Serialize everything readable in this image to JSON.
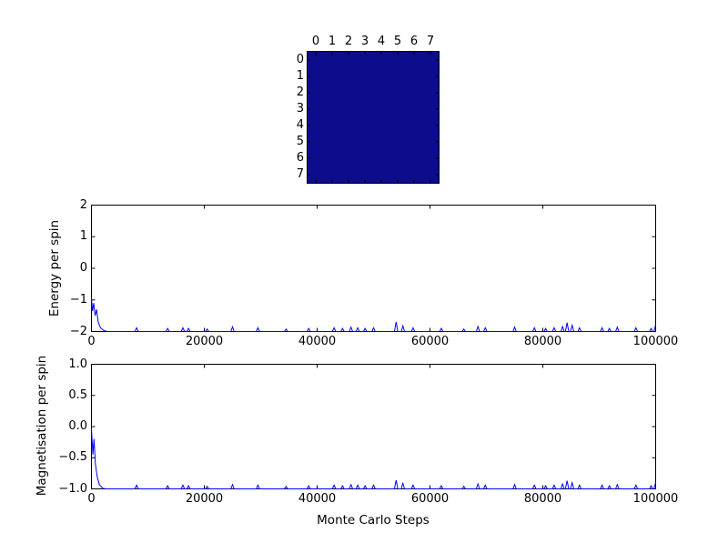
{
  "figure": {
    "background": "#ffffff",
    "axis_color": "#000000",
    "line_color": "#0000ff"
  },
  "chart_data": [
    {
      "type": "heatmap",
      "name": "spin-lattice",
      "rows": 8,
      "cols": 8,
      "x_tick_labels": [
        "0",
        "1",
        "2",
        "3",
        "4",
        "5",
        "6",
        "7"
      ],
      "y_tick_labels": [
        "0",
        "1",
        "2",
        "3",
        "4",
        "5",
        "6",
        "7"
      ],
      "uniform_value": -1,
      "color_map": {
        "-1": "#0c0c8d"
      },
      "values": [
        [
          -1,
          -1,
          -1,
          -1,
          -1,
          -1,
          -1,
          -1
        ],
        [
          -1,
          -1,
          -1,
          -1,
          -1,
          -1,
          -1,
          -1
        ],
        [
          -1,
          -1,
          -1,
          -1,
          -1,
          -1,
          -1,
          -1
        ],
        [
          -1,
          -1,
          -1,
          -1,
          -1,
          -1,
          -1,
          -1
        ],
        [
          -1,
          -1,
          -1,
          -1,
          -1,
          -1,
          -1,
          -1
        ],
        [
          -1,
          -1,
          -1,
          -1,
          -1,
          -1,
          -1,
          -1
        ],
        [
          -1,
          -1,
          -1,
          -1,
          -1,
          -1,
          -1,
          -1
        ],
        [
          -1,
          -1,
          -1,
          -1,
          -1,
          -1,
          -1,
          -1
        ]
      ]
    },
    {
      "type": "line",
      "ylabel": "Energy per spin",
      "xlim": [
        0,
        100000
      ],
      "ylim": [
        -2,
        2
      ],
      "x_ticks": [
        0,
        20000,
        40000,
        60000,
        80000,
        100000
      ],
      "x_tick_labels": [
        "0",
        "20000",
        "40000",
        "60000",
        "80000",
        "100000"
      ],
      "y_ticks": [
        2,
        1,
        0,
        -1,
        -2
      ],
      "y_tick_labels": [
        "2",
        "1",
        "0",
        "−1",
        "−2"
      ],
      "line_color": "#0000ff",
      "baseline": -2,
      "spike_half_width": 300,
      "transient": [
        [
          0,
          -0.95
        ],
        [
          200,
          -1.35
        ],
        [
          400,
          -1.1
        ],
        [
          650,
          -1.5
        ],
        [
          900,
          -1.3
        ],
        [
          1200,
          -1.7
        ],
        [
          1600,
          -1.88
        ],
        [
          2200,
          -1.97
        ],
        [
          2800,
          -2.0
        ]
      ],
      "spikes": [
        [
          8000,
          0.12
        ],
        [
          13500,
          0.1
        ],
        [
          16200,
          0.12
        ],
        [
          17200,
          0.1
        ],
        [
          20500,
          0.08
        ],
        [
          25000,
          0.15
        ],
        [
          29500,
          0.12
        ],
        [
          34500,
          0.08
        ],
        [
          38500,
          0.1
        ],
        [
          43000,
          0.12
        ],
        [
          44500,
          0.1
        ],
        [
          46000,
          0.14
        ],
        [
          47200,
          0.12
        ],
        [
          48500,
          0.1
        ],
        [
          50000,
          0.12
        ],
        [
          54000,
          0.3
        ],
        [
          55200,
          0.18
        ],
        [
          57000,
          0.12
        ],
        [
          62000,
          0.1
        ],
        [
          66000,
          0.08
        ],
        [
          68500,
          0.16
        ],
        [
          69800,
          0.12
        ],
        [
          75000,
          0.14
        ],
        [
          78500,
          0.12
        ],
        [
          80500,
          0.1
        ],
        [
          82000,
          0.12
        ],
        [
          83500,
          0.16
        ],
        [
          84300,
          0.28
        ],
        [
          85200,
          0.2
        ],
        [
          86500,
          0.12
        ],
        [
          90500,
          0.12
        ],
        [
          91800,
          0.1
        ],
        [
          93200,
          0.14
        ],
        [
          96500,
          0.12
        ],
        [
          99200,
          0.1
        ],
        [
          100000,
          0.22
        ]
      ]
    },
    {
      "type": "line",
      "ylabel": "Magnetisation per spin",
      "xlabel": "Monte Carlo Steps",
      "xlim": [
        0,
        100000
      ],
      "ylim": [
        -1,
        1
      ],
      "x_ticks": [
        0,
        20000,
        40000,
        60000,
        80000,
        100000
      ],
      "x_tick_labels": [
        "0",
        "20000",
        "40000",
        "60000",
        "80000",
        "100000"
      ],
      "y_ticks": [
        1.0,
        0.5,
        0.0,
        -0.5,
        -1.0
      ],
      "y_tick_labels": [
        "1.0",
        "0.5",
        "0.0",
        "−0.5",
        "−1.0"
      ],
      "line_color": "#0000ff",
      "baseline": -1,
      "spike_half_width": 300,
      "transient": [
        [
          0,
          -0.03
        ],
        [
          250,
          -0.45
        ],
        [
          450,
          -0.2
        ],
        [
          700,
          -0.6
        ],
        [
          1000,
          -0.8
        ],
        [
          1400,
          -0.93
        ],
        [
          2000,
          -0.99
        ],
        [
          2600,
          -1.0
        ]
      ],
      "spikes": [
        [
          8000,
          0.06
        ],
        [
          13500,
          0.05
        ],
        [
          16200,
          0.06
        ],
        [
          17200,
          0.05
        ],
        [
          20500,
          0.04
        ],
        [
          25000,
          0.07
        ],
        [
          29500,
          0.06
        ],
        [
          34500,
          0.04
        ],
        [
          38500,
          0.05
        ],
        [
          43000,
          0.06
        ],
        [
          44500,
          0.05
        ],
        [
          46000,
          0.07
        ],
        [
          47200,
          0.06
        ],
        [
          48500,
          0.05
        ],
        [
          50000,
          0.06
        ],
        [
          54000,
          0.14
        ],
        [
          55200,
          0.09
        ],
        [
          57000,
          0.06
        ],
        [
          62000,
          0.05
        ],
        [
          66000,
          0.04
        ],
        [
          68500,
          0.08
        ],
        [
          69800,
          0.06
        ],
        [
          75000,
          0.07
        ],
        [
          78500,
          0.06
        ],
        [
          80500,
          0.05
        ],
        [
          82000,
          0.06
        ],
        [
          83500,
          0.08
        ],
        [
          84300,
          0.13
        ],
        [
          85200,
          0.1
        ],
        [
          86500,
          0.06
        ],
        [
          90500,
          0.06
        ],
        [
          91800,
          0.05
        ],
        [
          93200,
          0.07
        ],
        [
          96500,
          0.06
        ],
        [
          99200,
          0.05
        ],
        [
          100000,
          0.1
        ]
      ]
    }
  ]
}
